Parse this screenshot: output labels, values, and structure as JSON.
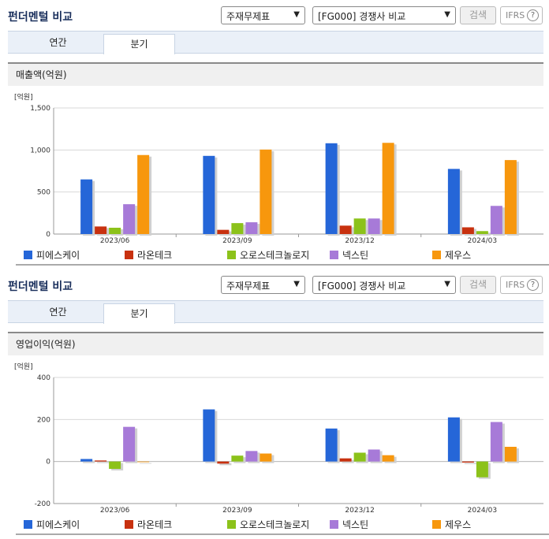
{
  "colors": {
    "피에스케이": "#2566d8",
    "라온테크": "#c8310f",
    "오로스테크놀로지": "#8cc21a",
    "넥스틴": "#a77ad8",
    "제우스": "#f7970d"
  },
  "panels": [
    {
      "title": "펀더멘털 비교",
      "select1": "주재무제표",
      "select2": "[FG000] 경쟁사 비교",
      "search_label": "검색",
      "ifrs_label": "IFRS",
      "help_glyph": "?",
      "tabs": [
        {
          "label": "연간",
          "active": false
        },
        {
          "label": "분기",
          "active": true
        }
      ],
      "metric_title": "매출액(억원)",
      "chart_data": {
        "type": "bar",
        "unit_label": "[억원]",
        "categories": [
          "2023/06",
          "2023/09",
          "2023/12",
          "2024/03"
        ],
        "ylim": [
          0,
          1500
        ],
        "yticks": [
          0,
          500,
          1000,
          1500
        ],
        "ytick_labels": [
          "0",
          "500",
          "1,000",
          "1,500"
        ],
        "series": [
          {
            "name": "피에스케이",
            "values": [
              650,
              930,
              1080,
              775
            ]
          },
          {
            "name": "라온테크",
            "values": [
              90,
              50,
              100,
              80
            ]
          },
          {
            "name": "오로스테크놀로지",
            "values": [
              75,
              130,
              185,
              35
            ]
          },
          {
            "name": "넥스틴",
            "values": [
              355,
              140,
              185,
              335
            ]
          },
          {
            "name": "제우스",
            "values": [
              940,
              1005,
              1085,
              880
            ]
          }
        ]
      }
    },
    {
      "title": "펀더멘털 비교",
      "select1": "주재무제표",
      "select2": "[FG000] 경쟁사 비교",
      "search_label": "검색",
      "ifrs_label": "IFRS",
      "help_glyph": "?",
      "tabs": [
        {
          "label": "연간",
          "active": false
        },
        {
          "label": "분기",
          "active": true
        }
      ],
      "metric_title": "영업이익(억원)",
      "chart_data": {
        "type": "bar",
        "unit_label": "[억원]",
        "categories": [
          "2023/06",
          "2023/09",
          "2023/12",
          "2024/03"
        ],
        "ylim": [
          -200,
          400
        ],
        "yticks": [
          -200,
          0,
          200,
          400
        ],
        "ytick_labels": [
          "-200",
          "0",
          "200",
          "400"
        ],
        "series": [
          {
            "name": "피에스케이",
            "values": [
              12,
              248,
              157,
              210
            ]
          },
          {
            "name": "라온테크",
            "values": [
              5,
              -10,
              15,
              -5
            ]
          },
          {
            "name": "오로스테크놀로지",
            "values": [
              -35,
              28,
              42,
              -75
            ]
          },
          {
            "name": "넥스틴",
            "values": [
              165,
              50,
              57,
              188
            ]
          },
          {
            "name": "제우스",
            "values": [
              -3,
              38,
              30,
              70
            ]
          }
        ]
      }
    }
  ]
}
